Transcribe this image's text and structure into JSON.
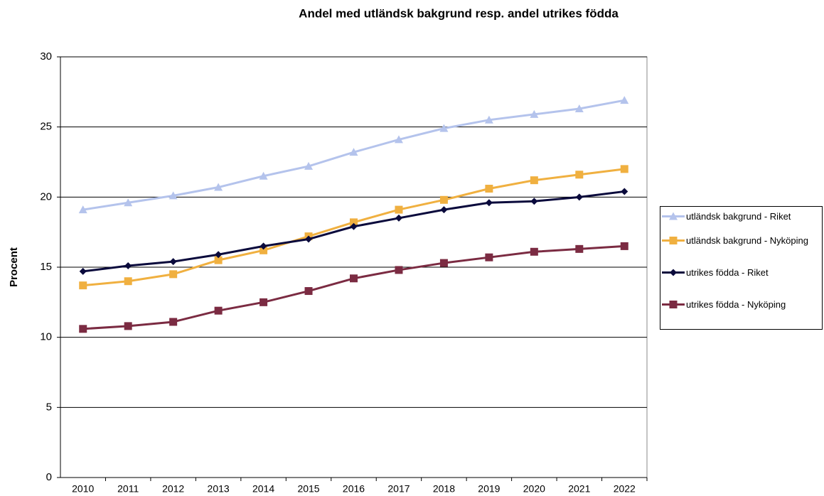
{
  "chart_data": {
    "type": "line",
    "title": "Andel med utländsk bakgrund resp. andel utrikes födda",
    "y_label": "Procent",
    "categories": [
      "2010",
      "2011",
      "2012",
      "2013",
      "2014",
      "2015",
      "2016",
      "2017",
      "2018",
      "2019",
      "2020",
      "2021",
      "2022"
    ],
    "series": [
      {
        "name": "utländsk bakgrund - Riket",
        "color": "#b4c3ec",
        "marker": "triangle",
        "values": [
          19.1,
          19.6,
          20.1,
          20.7,
          21.5,
          22.2,
          23.2,
          24.1,
          24.9,
          25.5,
          25.9,
          26.3,
          26.9
        ]
      },
      {
        "name": "utländsk bakgrund - Nyköping",
        "color": "#f0b040",
        "marker": "square",
        "values": [
          13.7,
          14.0,
          14.5,
          15.5,
          16.2,
          17.2,
          18.2,
          19.1,
          19.8,
          20.6,
          21.2,
          21.6,
          22.0
        ]
      },
      {
        "name": "utrikes födda - Riket",
        "color": "#0a0a3c",
        "marker": "diamond",
        "values": [
          14.7,
          15.1,
          15.4,
          15.9,
          16.5,
          17.0,
          17.9,
          18.5,
          19.1,
          19.6,
          19.7,
          20.0,
          20.4
        ]
      },
      {
        "name": "utrikes födda - Nyköping",
        "color": "#7b2b42",
        "marker": "square",
        "values": [
          10.6,
          10.8,
          11.1,
          11.9,
          12.5,
          13.3,
          14.2,
          14.8,
          15.3,
          15.7,
          16.1,
          16.3,
          16.5
        ]
      }
    ],
    "ylim": [
      0,
      30
    ],
    "yticks": [
      0,
      5,
      10,
      15,
      20,
      25,
      30
    ],
    "grid": true,
    "legend": "right"
  }
}
